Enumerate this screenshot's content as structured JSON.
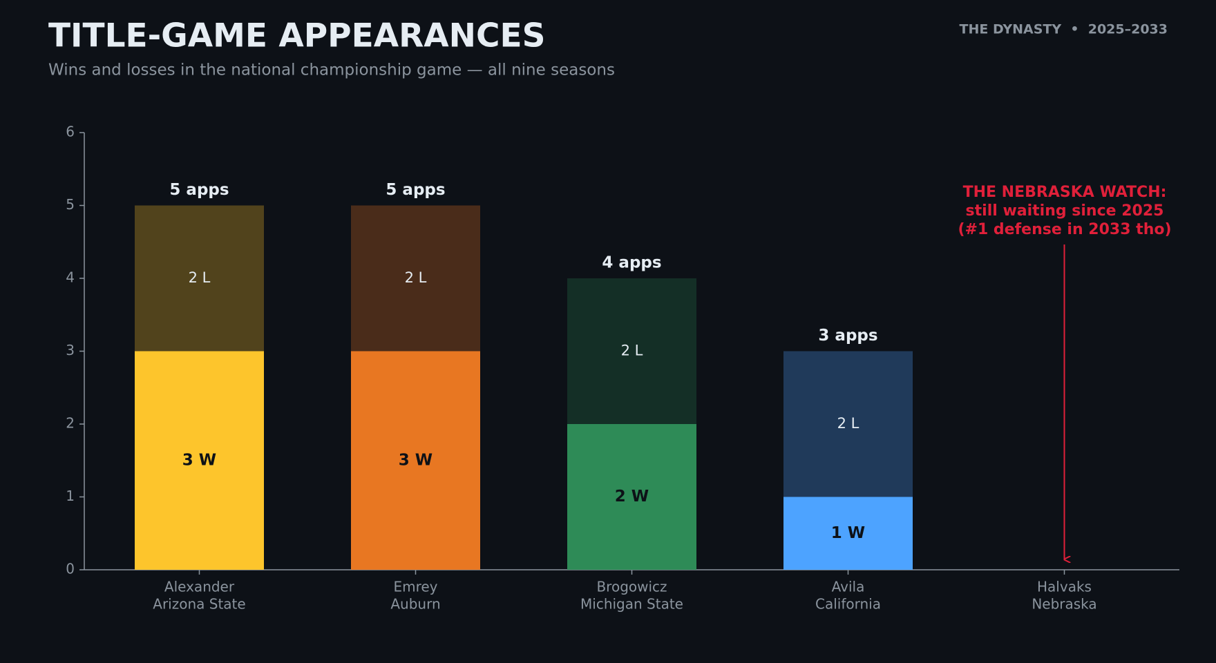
{
  "chart_data": {
    "type": "stacked_bar",
    "title": "TITLE-GAME APPEARANCES",
    "subtitle": "Wins and losses in the national championship game — all nine seasons",
    "brand": "THE DYNASTY  •  2025–2033",
    "categories": [
      [
        "Alexander",
        "Arizona State"
      ],
      [
        "Emrey",
        "Auburn"
      ],
      [
        "Brogowicz",
        "Michigan State"
      ],
      [
        "Avila",
        "California"
      ],
      [
        "Halvaks",
        "Nebraska"
      ]
    ],
    "series": [
      {
        "name": "Wins",
        "colors": [
          "#fdc52c",
          "#e87722",
          "#2e8b57",
          "#4da3ff",
          "#4da3ff"
        ],
        "values": [
          3,
          3,
          2,
          1,
          0
        ],
        "value_labels": [
          "3 W",
          "3 W",
          "2 W",
          "1 W",
          null
        ]
      },
      {
        "name": "Losses",
        "colors": [
          "#51431c",
          "#4a2c1a",
          "#142f26",
          "#203a5a",
          "#203a5a"
        ],
        "values": [
          2,
          2,
          2,
          2,
          0
        ],
        "value_labels": [
          "2 L",
          "2 L",
          "2 L",
          "2 L",
          null
        ]
      }
    ],
    "total_labels": [
      "5 apps",
      "5 apps",
      "4 apps",
      "3 apps",
      null
    ],
    "annotation": [
      "THE NEBRASKA WATCH:",
      "still waiting since 2025",
      "(#1 defense in 2033 tho)"
    ],
    "ylim": [
      0,
      6
    ],
    "yticks": [
      0,
      1,
      2,
      3,
      4,
      5,
      6
    ]
  }
}
